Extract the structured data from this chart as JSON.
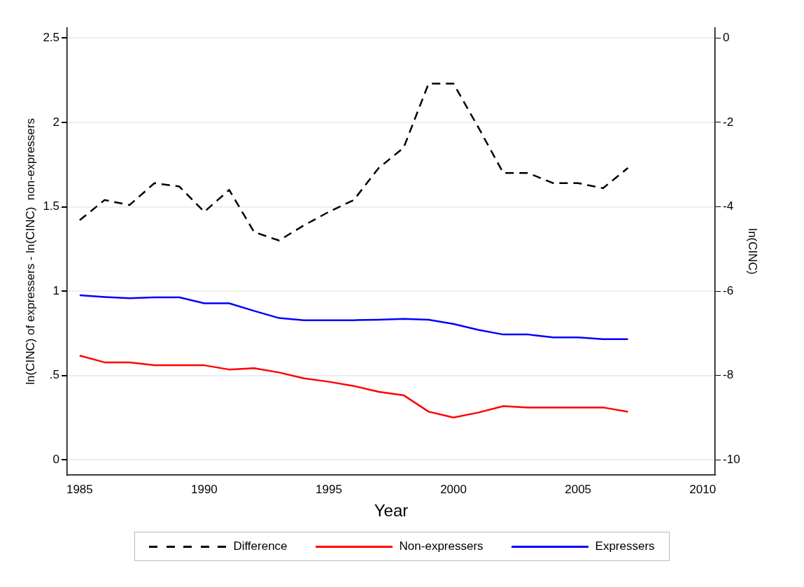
{
  "chart_data": {
    "type": "line",
    "xlabel": "Year",
    "ylabel": "ln(CINC) of expressers - ln(CINC)  non-expressers",
    "y2label": "ln(CINC)",
    "x": [
      1985,
      1986,
      1987,
      1988,
      1989,
      1990,
      1991,
      1992,
      1993,
      1994,
      1995,
      1996,
      1997,
      1998,
      1999,
      2000,
      2001,
      2002,
      2003,
      2004,
      2005,
      2006,
      2007
    ],
    "series": [
      {
        "name": "Difference",
        "color": "#000000",
        "line_style": "dashed",
        "values": [
          1.42,
          1.54,
          1.51,
          1.64,
          1.62,
          1.47,
          1.6,
          1.35,
          1.3,
          1.39,
          1.47,
          1.54,
          1.73,
          1.85,
          2.23,
          2.23,
          1.97,
          1.7,
          1.7,
          1.64,
          1.64,
          1.61,
          1.73
        ]
      },
      {
        "name": "Non-expressers",
        "color": "#ff0000",
        "axis": "y2",
        "values": [
          -7.53,
          -7.69,
          -7.69,
          -7.76,
          -7.76,
          -7.76,
          -7.86,
          -7.83,
          -7.93,
          -8.07,
          -8.15,
          -8.25,
          -8.39,
          -8.47,
          -8.86,
          -9.0,
          -8.88,
          -8.73,
          -8.76,
          -8.76,
          -8.76,
          -8.76,
          -8.86
        ]
      },
      {
        "name": "Expressers",
        "color": "#0000ff",
        "axis": "y2",
        "values": [
          -6.1,
          -6.14,
          -6.17,
          -6.15,
          -6.15,
          -6.29,
          -6.29,
          -6.47,
          -6.64,
          -6.69,
          -6.69,
          -6.69,
          -6.68,
          -6.66,
          -6.68,
          -6.78,
          -6.92,
          -7.03,
          -7.03,
          -7.1,
          -7.1,
          -7.14,
          -7.14
        ]
      }
    ],
    "xlim": [
      1984.5,
      2010.5
    ],
    "xticks": [
      1985,
      1990,
      1995,
      2000,
      2005,
      2010
    ],
    "ylim": [
      -0.09,
      2.56
    ],
    "yticks": [
      0,
      {
        "value": 0.5,
        "label": ".5"
      },
      1,
      1.5,
      2,
      2.5
    ],
    "y2lim": [
      -10.36,
      0.24
    ],
    "y2ticks": [
      -10,
      -8,
      -6,
      -4,
      -2,
      0
    ],
    "grid": "y",
    "legend": "bottom",
    "marker": "none"
  }
}
